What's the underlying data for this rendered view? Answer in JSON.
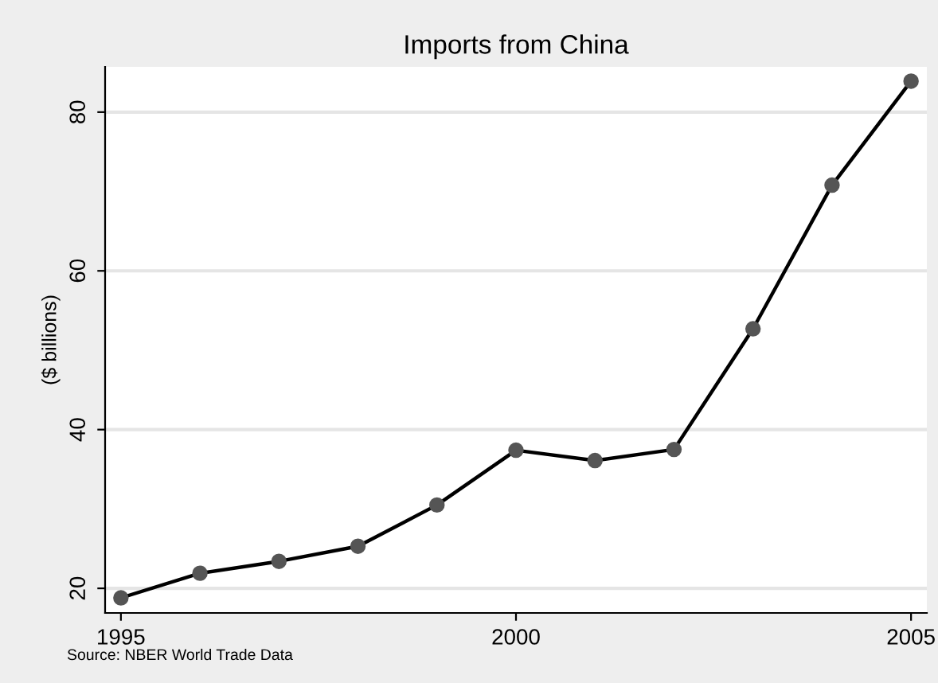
{
  "chart_data": {
    "type": "line",
    "title": "Imports from China",
    "ylabel": "($ billions)",
    "annotations": [
      "Source: NBER World Trade Data"
    ],
    "x": [
      1995,
      1996,
      1997,
      1998,
      1999,
      2000,
      2001,
      2002,
      2003,
      2004,
      2005
    ],
    "series": [
      {
        "color": "#000000",
        "values": [
          18.8,
          21.9,
          23.4,
          25.3,
          30.5,
          37.4,
          36.1,
          37.5,
          52.7,
          70.8,
          83.9
        ]
      }
    ],
    "xlim": [
      1994.8,
      2005.2
    ],
    "xticks": [
      1995,
      2000,
      2005
    ],
    "ylim": [
      16.9,
      85.7
    ],
    "yticks": [
      20,
      40,
      60,
      80
    ],
    "grid": "y",
    "marker": "circle",
    "line_style": "solid",
    "legend": false
  }
}
